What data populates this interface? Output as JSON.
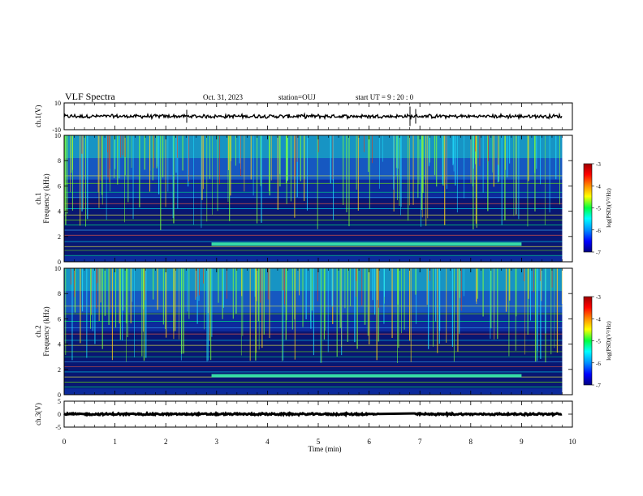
{
  "header": {
    "title": "VLF Spectra",
    "date": "Oct. 31, 2023",
    "station": "station=OUJ",
    "start_ut": "start  UT =   9 : 20 : 0"
  },
  "colorbar": {
    "label": "log(PSD)(V²/Hz)",
    "ticks": [
      "-3",
      "-4",
      "-5",
      "-6",
      "-7"
    ],
    "colors": [
      "#9e0000",
      "#ff0000",
      "#ff8c00",
      "#ffff00",
      "#00ff40",
      "#00ffff",
      "#0090ff",
      "#0000ff",
      "#000080"
    ]
  },
  "chart_data": [
    {
      "type": "line",
      "name": "ch1-waveform",
      "ylabel": "ch.1(V)",
      "yticks": [
        "10",
        "-10"
      ],
      "ylim": [
        -10,
        10
      ],
      "xlim": [
        0,
        10
      ],
      "level": 0,
      "amplitude": 1.2,
      "grid": false
    },
    {
      "type": "heatmap",
      "name": "ch1-spectrogram",
      "ylabel_lines": [
        "ch.1",
        "Frequency (kHz)"
      ],
      "yticks": [
        "0",
        "2",
        "4",
        "6",
        "8",
        "10"
      ],
      "ylim": [
        0,
        10
      ],
      "xlim": [
        0,
        9.8
      ],
      "lines_khz": [
        0.5,
        0.9,
        1.2,
        1.6,
        2.1,
        2.5,
        2.9,
        3.3,
        3.7,
        4.2,
        4.6,
        5.1,
        5.5,
        6.2,
        6.8
      ],
      "band": {
        "from_min": 2.9,
        "to_min": 9.0,
        "khz": 1.4
      },
      "grid": false
    },
    {
      "type": "heatmap",
      "name": "ch2-spectrogram",
      "ylabel_lines": [
        "ch.2",
        "Frequency (kHz)"
      ],
      "yticks": [
        "0",
        "2",
        "4",
        "6",
        "8",
        "10"
      ],
      "ylim": [
        0,
        10
      ],
      "xlim": [
        0,
        9.8
      ],
      "lines_khz": [
        0.6,
        1.0,
        1.4,
        1.8,
        2.2,
        2.6,
        3.0,
        3.4,
        3.9,
        4.3,
        4.8,
        5.3,
        5.8,
        6.4,
        7.0
      ],
      "band": {
        "from_min": 2.9,
        "to_min": 9.0,
        "khz": 1.5
      },
      "grid": false
    },
    {
      "type": "line",
      "name": "ch3-waveform",
      "ylabel": "ch.3(V)",
      "yticks": [
        "5",
        "0",
        "-5"
      ],
      "ylim": [
        -5,
        5
      ],
      "xlim": [
        0,
        10
      ],
      "level": 0,
      "amplitude": 0.3,
      "gap_min": [
        6.2,
        6.9
      ],
      "grid": false
    }
  ],
  "x_axis": {
    "label": "Time (min)",
    "ticks": [
      "0",
      "1",
      "2",
      "3",
      "4",
      "5",
      "6",
      "7",
      "8",
      "9",
      "10"
    ],
    "xlim": [
      0,
      10
    ]
  }
}
